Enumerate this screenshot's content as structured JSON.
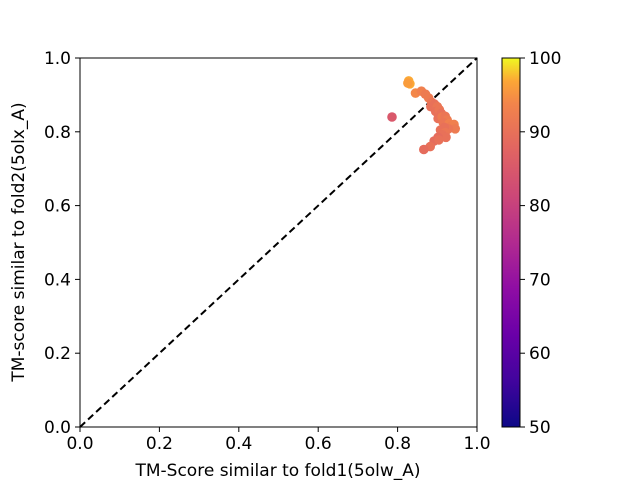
{
  "chart_data": {
    "type": "scatter",
    "title": "",
    "xlabel": "TM-Score similar to fold1(5olw_A)",
    "ylabel": "TM-score similar to fold2(5olx_A)",
    "xlim": [
      0.0,
      1.0
    ],
    "ylim": [
      0.0,
      1.0
    ],
    "xticks": [
      "0.0",
      "0.2",
      "0.4",
      "0.6",
      "0.8",
      "1.0"
    ],
    "yticks": [
      "0.0",
      "0.2",
      "0.4",
      "0.6",
      "0.8",
      "1.0"
    ],
    "xtick_values": [
      0.0,
      0.2,
      0.4,
      0.6,
      0.8,
      1.0
    ],
    "ytick_values": [
      0.0,
      0.2,
      0.4,
      0.6,
      0.8,
      1.0
    ],
    "grid": false,
    "reference_line": {
      "style": "dashed",
      "color": "#000000",
      "from": [
        0.0,
        0.0
      ],
      "to": [
        1.0,
        1.0
      ]
    },
    "colorbar": {
      "colormap": "plasma",
      "range": [
        50,
        100
      ],
      "ticks": [
        "50",
        "60",
        "70",
        "80",
        "90",
        "100"
      ],
      "tick_values": [
        50,
        60,
        70,
        80,
        90,
        100
      ]
    },
    "points": [
      {
        "x": 0.828,
        "y": 0.938,
        "c": 97
      },
      {
        "x": 0.831,
        "y": 0.93,
        "c": 97
      },
      {
        "x": 0.826,
        "y": 0.932,
        "c": 96
      },
      {
        "x": 0.845,
        "y": 0.905,
        "c": 94
      },
      {
        "x": 0.86,
        "y": 0.91,
        "c": 93
      },
      {
        "x": 0.87,
        "y": 0.902,
        "c": 92
      },
      {
        "x": 0.878,
        "y": 0.892,
        "c": 92
      },
      {
        "x": 0.886,
        "y": 0.88,
        "c": 91
      },
      {
        "x": 0.884,
        "y": 0.868,
        "c": 90
      },
      {
        "x": 0.893,
        "y": 0.875,
        "c": 90
      },
      {
        "x": 0.9,
        "y": 0.868,
        "c": 91
      },
      {
        "x": 0.896,
        "y": 0.855,
        "c": 90
      },
      {
        "x": 0.905,
        "y": 0.86,
        "c": 91
      },
      {
        "x": 0.91,
        "y": 0.85,
        "c": 90
      },
      {
        "x": 0.902,
        "y": 0.836,
        "c": 90
      },
      {
        "x": 0.912,
        "y": 0.84,
        "c": 92
      },
      {
        "x": 0.92,
        "y": 0.842,
        "c": 91
      },
      {
        "x": 0.925,
        "y": 0.832,
        "c": 92
      },
      {
        "x": 0.915,
        "y": 0.825,
        "c": 91
      },
      {
        "x": 0.93,
        "y": 0.822,
        "c": 93
      },
      {
        "x": 0.935,
        "y": 0.815,
        "c": 92
      },
      {
        "x": 0.942,
        "y": 0.82,
        "c": 93
      },
      {
        "x": 0.945,
        "y": 0.808,
        "c": 92
      },
      {
        "x": 0.928,
        "y": 0.808,
        "c": 91
      },
      {
        "x": 0.918,
        "y": 0.812,
        "c": 90
      },
      {
        "x": 0.908,
        "y": 0.805,
        "c": 90
      },
      {
        "x": 0.92,
        "y": 0.798,
        "c": 91
      },
      {
        "x": 0.912,
        "y": 0.792,
        "c": 90
      },
      {
        "x": 0.922,
        "y": 0.785,
        "c": 90
      },
      {
        "x": 0.902,
        "y": 0.785,
        "c": 89
      },
      {
        "x": 0.892,
        "y": 0.775,
        "c": 89
      },
      {
        "x": 0.904,
        "y": 0.778,
        "c": 90
      },
      {
        "x": 0.882,
        "y": 0.76,
        "c": 90
      },
      {
        "x": 0.866,
        "y": 0.752,
        "c": 89
      },
      {
        "x": 0.786,
        "y": 0.84,
        "c": 85
      }
    ]
  }
}
